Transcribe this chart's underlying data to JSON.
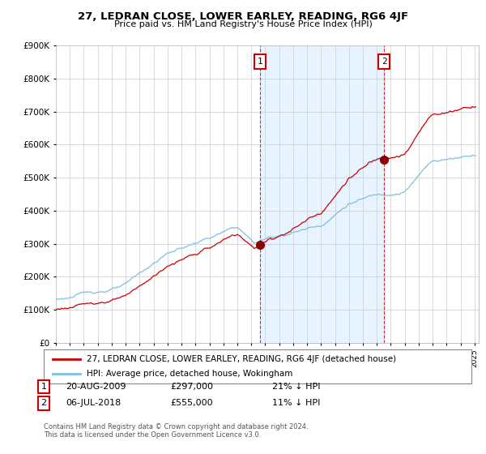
{
  "title": "27, LEDRAN CLOSE, LOWER EARLEY, READING, RG6 4JF",
  "subtitle": "Price paid vs. HM Land Registry's House Price Index (HPI)",
  "hpi_label": "HPI: Average price, detached house, Wokingham",
  "property_label": "27, LEDRAN CLOSE, LOWER EARLEY, READING, RG6 4JF (detached house)",
  "sale1_date": "20-AUG-2009",
  "sale1_price": 297000,
  "sale1_pct": "21% ↓ HPI",
  "sale2_date": "06-JUL-2018",
  "sale2_price": 555000,
  "sale2_pct": "11% ↓ HPI",
  "hpi_color": "#7fbfdf",
  "property_color": "#cc0000",
  "shade_color": "#ddeeff",
  "sale_vline_color": "#cc0000",
  "background_color": "#ffffff",
  "grid_color": "#cccccc",
  "ylim": [
    0,
    900000
  ],
  "year_start": 1995,
  "year_end": 2025,
  "footer": "Contains HM Land Registry data © Crown copyright and database right 2024.\nThis data is licensed under the Open Government Licence v3.0."
}
